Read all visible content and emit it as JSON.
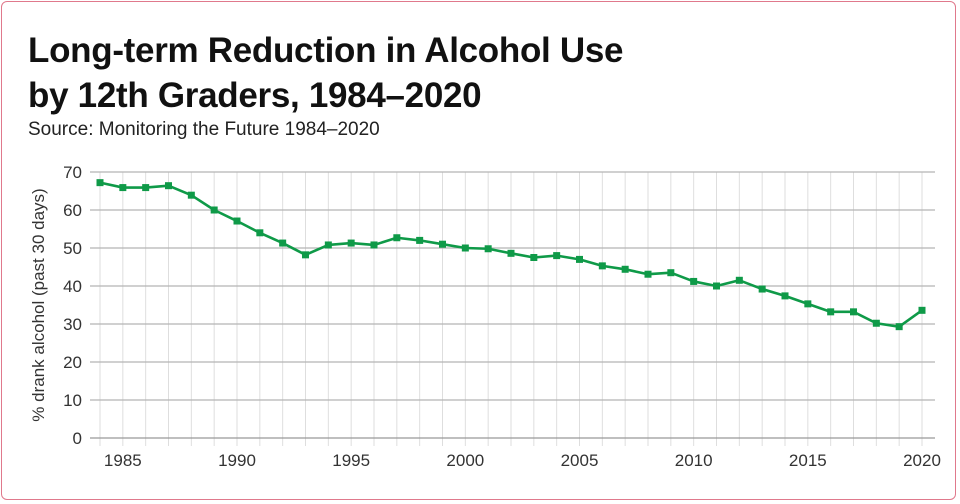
{
  "chart_data": {
    "type": "line",
    "title_line1": "Long-term Reduction in Alcohol Use",
    "title_line2": "by 12th Graders, 1984–2020",
    "subtitle": "Source: Monitoring the Future 1984–2020",
    "xlabel": "",
    "ylabel": "% drank alcohol (past 30 days)",
    "xlim": [
      1984,
      2020
    ],
    "ylim": [
      0,
      70
    ],
    "yticks": [
      0,
      10,
      20,
      30,
      40,
      50,
      60,
      70
    ],
    "xticks": [
      1985,
      1990,
      1995,
      2000,
      2005,
      2010,
      2015,
      2020
    ],
    "grid": true,
    "color": "#0f9a48",
    "series": [
      {
        "name": "12th graders",
        "x": [
          1984,
          1985,
          1986,
          1987,
          1988,
          1989,
          1990,
          1991,
          1992,
          1993,
          1994,
          1995,
          1996,
          1997,
          1998,
          1999,
          2000,
          2001,
          2002,
          2003,
          2004,
          2005,
          2006,
          2007,
          2008,
          2009,
          2010,
          2011,
          2012,
          2013,
          2014,
          2015,
          2016,
          2017,
          2018,
          2019,
          2020
        ],
        "values": [
          67.2,
          65.9,
          65.9,
          66.4,
          63.9,
          60.0,
          57.1,
          54.0,
          51.3,
          48.2,
          50.8,
          51.3,
          50.8,
          52.7,
          52.0,
          51.0,
          50.0,
          49.8,
          48.6,
          47.5,
          48.0,
          47.0,
          45.3,
          44.4,
          43.1,
          43.5,
          41.2,
          40.0,
          41.5,
          39.2,
          37.4,
          35.3,
          33.2,
          33.2,
          30.2,
          29.3,
          33.6
        ]
      }
    ]
  }
}
